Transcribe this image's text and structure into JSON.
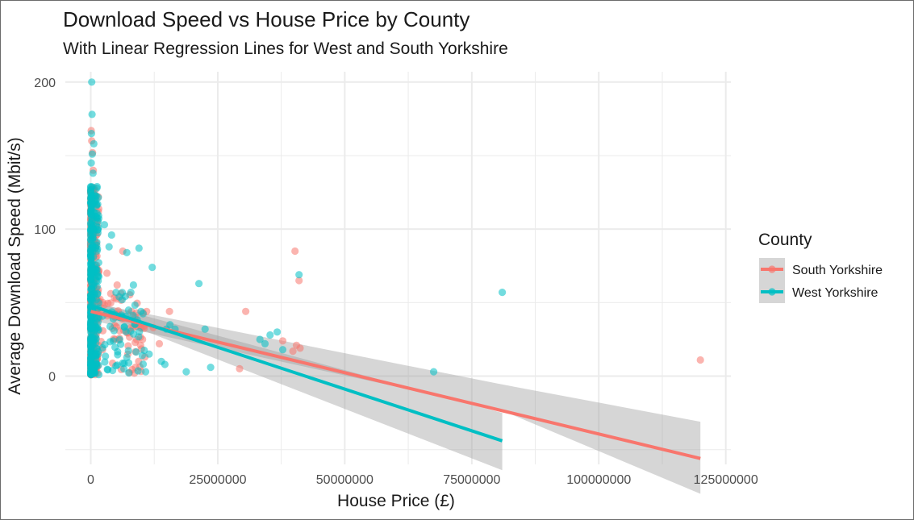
{
  "chart_data": {
    "type": "scatter",
    "title": "Download Speed vs House Price by County",
    "subtitle": "With Linear Regression Lines for West and South Yorkshire",
    "xlabel": "House Price (£)",
    "ylabel": "Average Download Speed (Mbit/s)",
    "xlim": [
      -5000000,
      126000000
    ],
    "ylim": [
      -60,
      207
    ],
    "x_ticks": [
      0,
      25000000,
      50000000,
      75000000,
      100000000,
      125000000
    ],
    "x_tick_labels": [
      "0",
      "25000000",
      "50000000",
      "75000000",
      "100000000",
      "125000000"
    ],
    "y_ticks": [
      0,
      100,
      200
    ],
    "y_tick_labels": [
      "0",
      "100",
      "200"
    ],
    "grid": true,
    "legend": {
      "title": "County",
      "position": "right"
    },
    "colors": {
      "South Yorkshire": "#f8766d",
      "West Yorkshire": "#00bfc4",
      "band": "#999999",
      "grid": "#ebebeb"
    },
    "series": [
      {
        "name": "South Yorkshire",
        "color": "#f8766d",
        "points": [
          [
            40200000,
            85
          ],
          [
            41000000,
            65
          ],
          [
            30500000,
            44
          ],
          [
            37800000,
            24
          ],
          [
            40500000,
            21
          ],
          [
            41200000,
            19
          ],
          [
            39800000,
            17
          ],
          [
            29300000,
            5
          ],
          [
            120000000,
            11
          ],
          [
            15500000,
            44
          ],
          [
            12300000,
            33
          ],
          [
            9800000,
            21
          ],
          [
            8000000,
            44
          ],
          [
            6300000,
            85
          ],
          [
            5200000,
            62
          ],
          [
            4800000,
            40
          ],
          [
            7300000,
            15
          ],
          [
            3200000,
            70
          ],
          [
            2400000,
            50
          ],
          [
            11000000,
            44
          ],
          [
            8600000,
            2
          ],
          [
            10200000,
            25
          ],
          [
            9000000,
            43
          ],
          [
            13500000,
            22
          ]
        ],
        "regression": {
          "x": [
            0,
            120000000
          ],
          "y": [
            44,
            -56
          ]
        },
        "band": {
          "x": [
            0,
            80000000,
            120000000
          ],
          "lower": [
            38,
            -22,
            -80
          ],
          "upper": [
            50,
            -5,
            -31
          ]
        }
      },
      {
        "name": "West Yorkshire",
        "color": "#00bfc4",
        "points": [
          [
            81000000,
            57
          ],
          [
            67500000,
            3
          ],
          [
            41000000,
            69
          ],
          [
            21300000,
            63
          ],
          [
            36700000,
            30
          ],
          [
            35300000,
            28
          ],
          [
            33300000,
            25
          ],
          [
            37800000,
            18
          ],
          [
            34300000,
            22
          ],
          [
            22500000,
            32
          ],
          [
            23600000,
            6
          ],
          [
            18800000,
            3
          ],
          [
            15600000,
            35
          ],
          [
            14900000,
            32
          ],
          [
            14600000,
            8
          ],
          [
            12100000,
            74
          ],
          [
            9500000,
            87
          ],
          [
            7100000,
            84
          ],
          [
            8400000,
            62
          ],
          [
            10800000,
            3
          ],
          [
            6200000,
            52
          ],
          [
            4100000,
            96
          ],
          [
            3600000,
            88
          ],
          [
            2700000,
            103
          ],
          [
            5600000,
            40
          ],
          [
            7900000,
            57
          ],
          [
            13900000,
            10
          ],
          [
            16600000,
            32
          ],
          [
            11500000,
            15
          ],
          [
            9900000,
            44
          ]
        ],
        "regression": {
          "x": [
            0,
            81000000
          ],
          "y": [
            48,
            -44
          ]
        },
        "band": {
          "x": [
            0,
            81000000
          ],
          "lower": [
            45,
            -64
          ],
          "upper": [
            51,
            -25
          ]
        }
      }
    ]
  }
}
